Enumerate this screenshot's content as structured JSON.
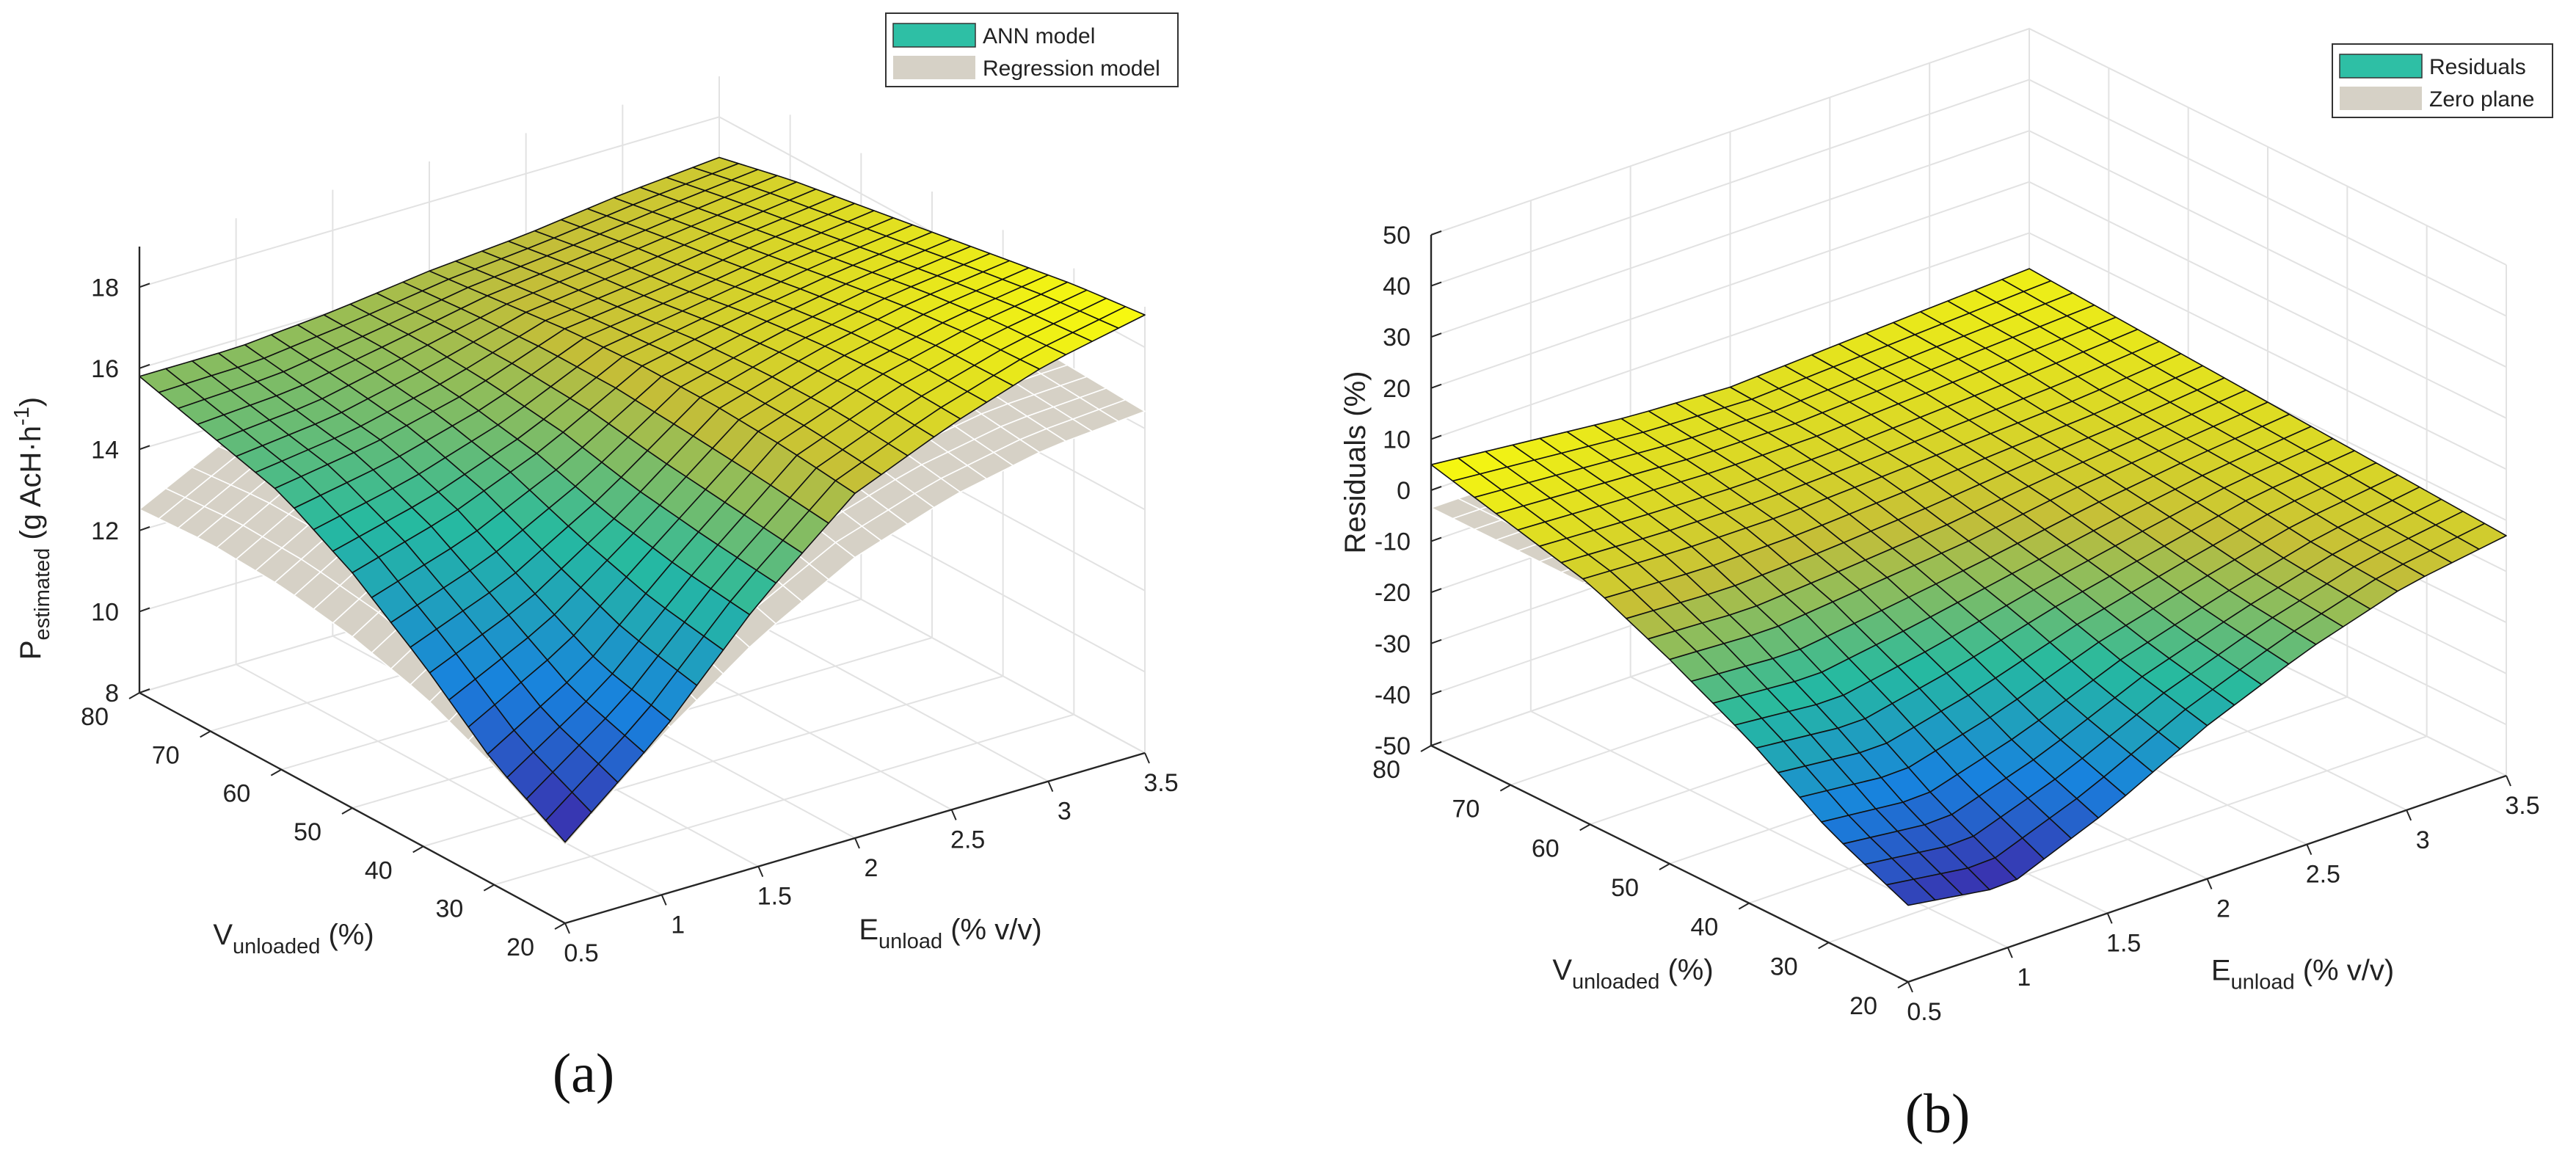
{
  "chart_data": [
    {
      "id": "a",
      "type": "surface3d",
      "panel_label": "(a)",
      "zlim": [
        8,
        19
      ],
      "z_ticks": [
        8,
        10,
        12,
        14,
        16,
        18
      ],
      "xlim": [
        0.5,
        3.5
      ],
      "x_ticks": [
        "0.5",
        "1",
        "1.5",
        "2",
        "2.5",
        "3",
        "3.5"
      ],
      "ylim": [
        20,
        80
      ],
      "y_ticks": [
        "20",
        "30",
        "40",
        "50",
        "60",
        "70",
        "80"
      ],
      "xlabel": {
        "main": "E",
        "sub": "unload",
        "rest": " (% v/v)"
      },
      "ylabel": {
        "main": "V",
        "sub": "unloaded",
        "rest": " (%)"
      },
      "zlabel": {
        "main": "P",
        "sub": "estimated",
        "rest": " (g AcH·h",
        "sup": "-1",
        "end": ")"
      },
      "legend": [
        "ANN model",
        "Regression model"
      ],
      "series": [
        {
          "name": "ANN model",
          "grid": {
            "x": [
              0.5,
              1.0,
              1.5,
              2.0,
              2.5,
              3.0,
              3.5
            ],
            "y": [
              20,
              30,
              40,
              50,
              60,
              70,
              80
            ],
            "z": [
              [
                10.0,
                12.0,
                14.5,
                16.5,
                17.5,
                18.3,
                18.8
              ],
              [
                11.0,
                12.5,
                14.7,
                16.7,
                17.6,
                18.2,
                18.6
              ],
              [
                12.5,
                13.5,
                15.0,
                16.8,
                17.5,
                18.0,
                18.3
              ],
              [
                13.8,
                14.5,
                15.5,
                16.8,
                17.3,
                17.7,
                18.0
              ],
              [
                14.8,
                15.2,
                15.8,
                16.7,
                17.0,
                17.4,
                17.7
              ],
              [
                15.3,
                15.5,
                16.0,
                16.5,
                16.8,
                17.1,
                17.4
              ],
              [
                15.8,
                15.8,
                16.0,
                16.3,
                16.5,
                16.8,
                17.0
              ]
            ]
          }
        },
        {
          "name": "Regression model",
          "grid": {
            "x": [
              0.5,
              1.0,
              1.5,
              2.0,
              2.5,
              3.0,
              3.5
            ],
            "y": [
              20,
              30,
              40,
              50,
              60,
              70,
              80
            ],
            "z": [
              [
                10.5,
                12.5,
                14.2,
                15.5,
                16.3,
                16.8,
                17.0
              ],
              [
                11.5,
                13.3,
                14.8,
                15.9,
                16.6,
                17.0,
                17.1
              ],
              [
                12.3,
                13.9,
                15.3,
                16.3,
                16.9,
                17.2,
                17.2
              ],
              [
                12.8,
                14.3,
                15.6,
                16.5,
                17.0,
                17.2,
                17.2
              ],
              [
                13.1,
                14.5,
                15.7,
                16.5,
                17.0,
                17.1,
                17.0
              ],
              [
                13.2,
                14.5,
                15.6,
                16.3,
                16.7,
                16.8,
                16.6
              ],
              [
                13.1,
                14.3,
                15.3,
                16.0,
                16.3,
                16.3,
                16.1
              ]
            ]
          }
        }
      ]
    },
    {
      "id": "b",
      "type": "surface3d",
      "panel_label": "(b)",
      "zlim": [
        -50,
        50
      ],
      "z_ticks": [
        -50,
        -40,
        -30,
        -20,
        -10,
        0,
        10,
        20,
        30,
        40,
        50
      ],
      "xlim": [
        0.5,
        3.5
      ],
      "x_ticks": [
        "0.5",
        "1",
        "1.5",
        "2",
        "2.5",
        "3",
        "3.5"
      ],
      "ylim": [
        20,
        80
      ],
      "y_ticks": [
        "20",
        "30",
        "40",
        "50",
        "60",
        "70",
        "80"
      ],
      "xlabel": {
        "main": "E",
        "sub": "unload",
        "rest": " (% v/v)"
      },
      "ylabel": {
        "main": "V",
        "sub": "unloaded",
        "rest": " (%)"
      },
      "zlabel": {
        "main": "Residuals (%)"
      },
      "legend": [
        "Residuals",
        "Zero plane"
      ],
      "series": [
        {
          "name": "Residuals",
          "grid": {
            "x": [
              0.5,
              1.0,
              1.5,
              2.0,
              2.5,
              3.0,
              3.5
            ],
            "y": [
              20,
              30,
              40,
              50,
              60,
              70,
              80
            ],
            "z": [
              [
                -35,
                -38,
                -30,
                -20,
                -12,
                -6,
                -3
              ],
              [
                -28,
                -30,
                -24,
                -16,
                -10,
                -5,
                -2
              ],
              [
                -18,
                -20,
                -16,
                -11,
                -7,
                -3,
                -1
              ],
              [
                -10,
                -11,
                -9,
                -7,
                -4,
                -2,
                0
              ],
              [
                -3,
                -4,
                -4,
                -3,
                -2,
                -1,
                1
              ],
              [
                1,
                0,
                -1,
                -1,
                0,
                1,
                2
              ],
              [
                5,
                3,
                1,
                0,
                1,
                2,
                3
              ]
            ]
          }
        },
        {
          "name": "Zero plane",
          "grid": {
            "x": [
              0.5,
              1.0,
              1.5,
              2.0,
              2.5,
              3.0,
              3.5
            ],
            "y": [
              20,
              30,
              40,
              50,
              60,
              70,
              80
            ],
            "z": [
              [
                0,
                0,
                0,
                0,
                0,
                0,
                0
              ],
              [
                0,
                0,
                0,
                0,
                0,
                0,
                0
              ],
              [
                0,
                0,
                0,
                0,
                0,
                0,
                0
              ],
              [
                0,
                0,
                0,
                0,
                0,
                0,
                0
              ],
              [
                0,
                0,
                0,
                0,
                0,
                0,
                0
              ],
              [
                0,
                0,
                0,
                0,
                0,
                0,
                0
              ],
              [
                0,
                0,
                0,
                0,
                0,
                0,
                0
              ]
            ]
          }
        }
      ]
    }
  ],
  "colors": {
    "ann_legend": "#2ebfa5",
    "residuals_legend": "#2ebfa5",
    "regression": "#d6d1c6",
    "zero_plane": "#d6d1c6",
    "grid": "#e2e2e2",
    "mesh": "#111111"
  }
}
